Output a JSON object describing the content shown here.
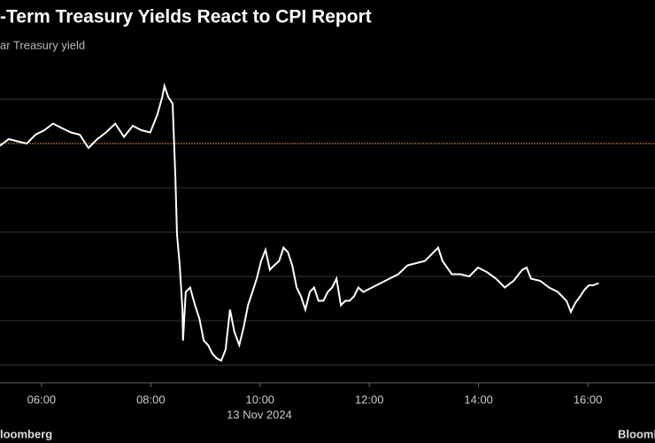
{
  "chart_data": {
    "type": "line",
    "title": "-Term Treasury Yields React to CPI Report",
    "subtitle": "ar Treasury yield",
    "date_label": "13 Nov 2024",
    "source": "loomberg",
    "brand": "Bloomb",
    "xlim": [
      5.24,
      17.23
    ],
    "xticks": [
      {
        "value": 6,
        "label": "06:00"
      },
      {
        "value": 8,
        "label": "08:00"
      },
      {
        "value": 10,
        "label": "10:00"
      },
      {
        "value": 12,
        "label": "12:00"
      },
      {
        "value": 14,
        "label": "14:00"
      },
      {
        "value": 16,
        "label": "16:00"
      }
    ],
    "ylim": [
      4.252,
      4.3888
    ],
    "y_gridlines": [
      4.26,
      4.28,
      4.3,
      4.32,
      4.34,
      4.38
    ],
    "reference_line": {
      "value": 4.36,
      "color": "#e07b20"
    },
    "grid": true,
    "series": [
      {
        "color": "#ffffff",
        "x": [
          5.24,
          5.4,
          5.56,
          5.73,
          5.89,
          6.05,
          6.21,
          6.37,
          6.54,
          6.7,
          6.86,
          7.02,
          7.18,
          7.35,
          7.51,
          7.67,
          7.83,
          7.99,
          8.12,
          8.21,
          8.25,
          8.32,
          8.4,
          8.45,
          8.48,
          8.53,
          8.58,
          8.59,
          8.64,
          8.72,
          8.81,
          8.89,
          8.97,
          9.05,
          9.13,
          9.21,
          9.29,
          9.37,
          9.45,
          9.53,
          9.62,
          9.7,
          9.78,
          9.86,
          9.94,
          10.02,
          10.1,
          10.18,
          10.26,
          10.35,
          10.43,
          10.51,
          10.59,
          10.67,
          10.75,
          10.83,
          10.91,
          10.99,
          11.07,
          11.16,
          11.24,
          11.32,
          11.4,
          11.48,
          11.56,
          11.64,
          11.72,
          11.8,
          11.89,
          12.05,
          12.21,
          12.37,
          12.53,
          12.7,
          12.86,
          13.02,
          13.18,
          13.26,
          13.34,
          13.51,
          13.67,
          13.83,
          13.99,
          14.15,
          14.32,
          14.48,
          14.64,
          14.8,
          14.88,
          14.96,
          15.13,
          15.29,
          15.45,
          15.61,
          15.69,
          15.77,
          15.86,
          15.94,
          16.02,
          16.1,
          16.2
        ],
        "values": [
          4.359,
          4.362,
          4.361,
          4.36,
          4.364,
          4.366,
          4.369,
          4.367,
          4.365,
          4.364,
          4.358,
          4.362,
          4.365,
          4.369,
          4.363,
          4.368,
          4.366,
          4.365,
          4.373,
          4.381,
          4.386,
          4.381,
          4.378,
          4.345,
          4.319,
          4.305,
          4.285,
          4.271,
          4.293,
          4.295,
          4.287,
          4.281,
          4.271,
          4.269,
          4.265,
          4.263,
          4.262,
          4.267,
          4.285,
          4.275,
          4.269,
          4.277,
          4.287,
          4.293,
          4.299,
          4.307,
          4.312,
          4.303,
          4.305,
          4.307,
          4.313,
          4.311,
          4.305,
          4.295,
          4.291,
          4.285,
          4.293,
          4.295,
          4.289,
          4.289,
          4.293,
          4.295,
          4.299,
          4.287,
          4.289,
          4.289,
          4.291,
          4.295,
          4.293,
          4.295,
          4.297,
          4.299,
          4.301,
          4.305,
          4.306,
          4.307,
          4.311,
          4.313,
          4.307,
          4.301,
          4.301,
          4.3,
          4.304,
          4.302,
          4.299,
          4.295,
          4.298,
          4.303,
          4.304,
          4.299,
          4.298,
          4.295,
          4.293,
          4.289,
          4.284,
          4.288,
          4.291,
          4.294,
          4.296,
          4.296,
          4.297
        ]
      }
    ]
  }
}
